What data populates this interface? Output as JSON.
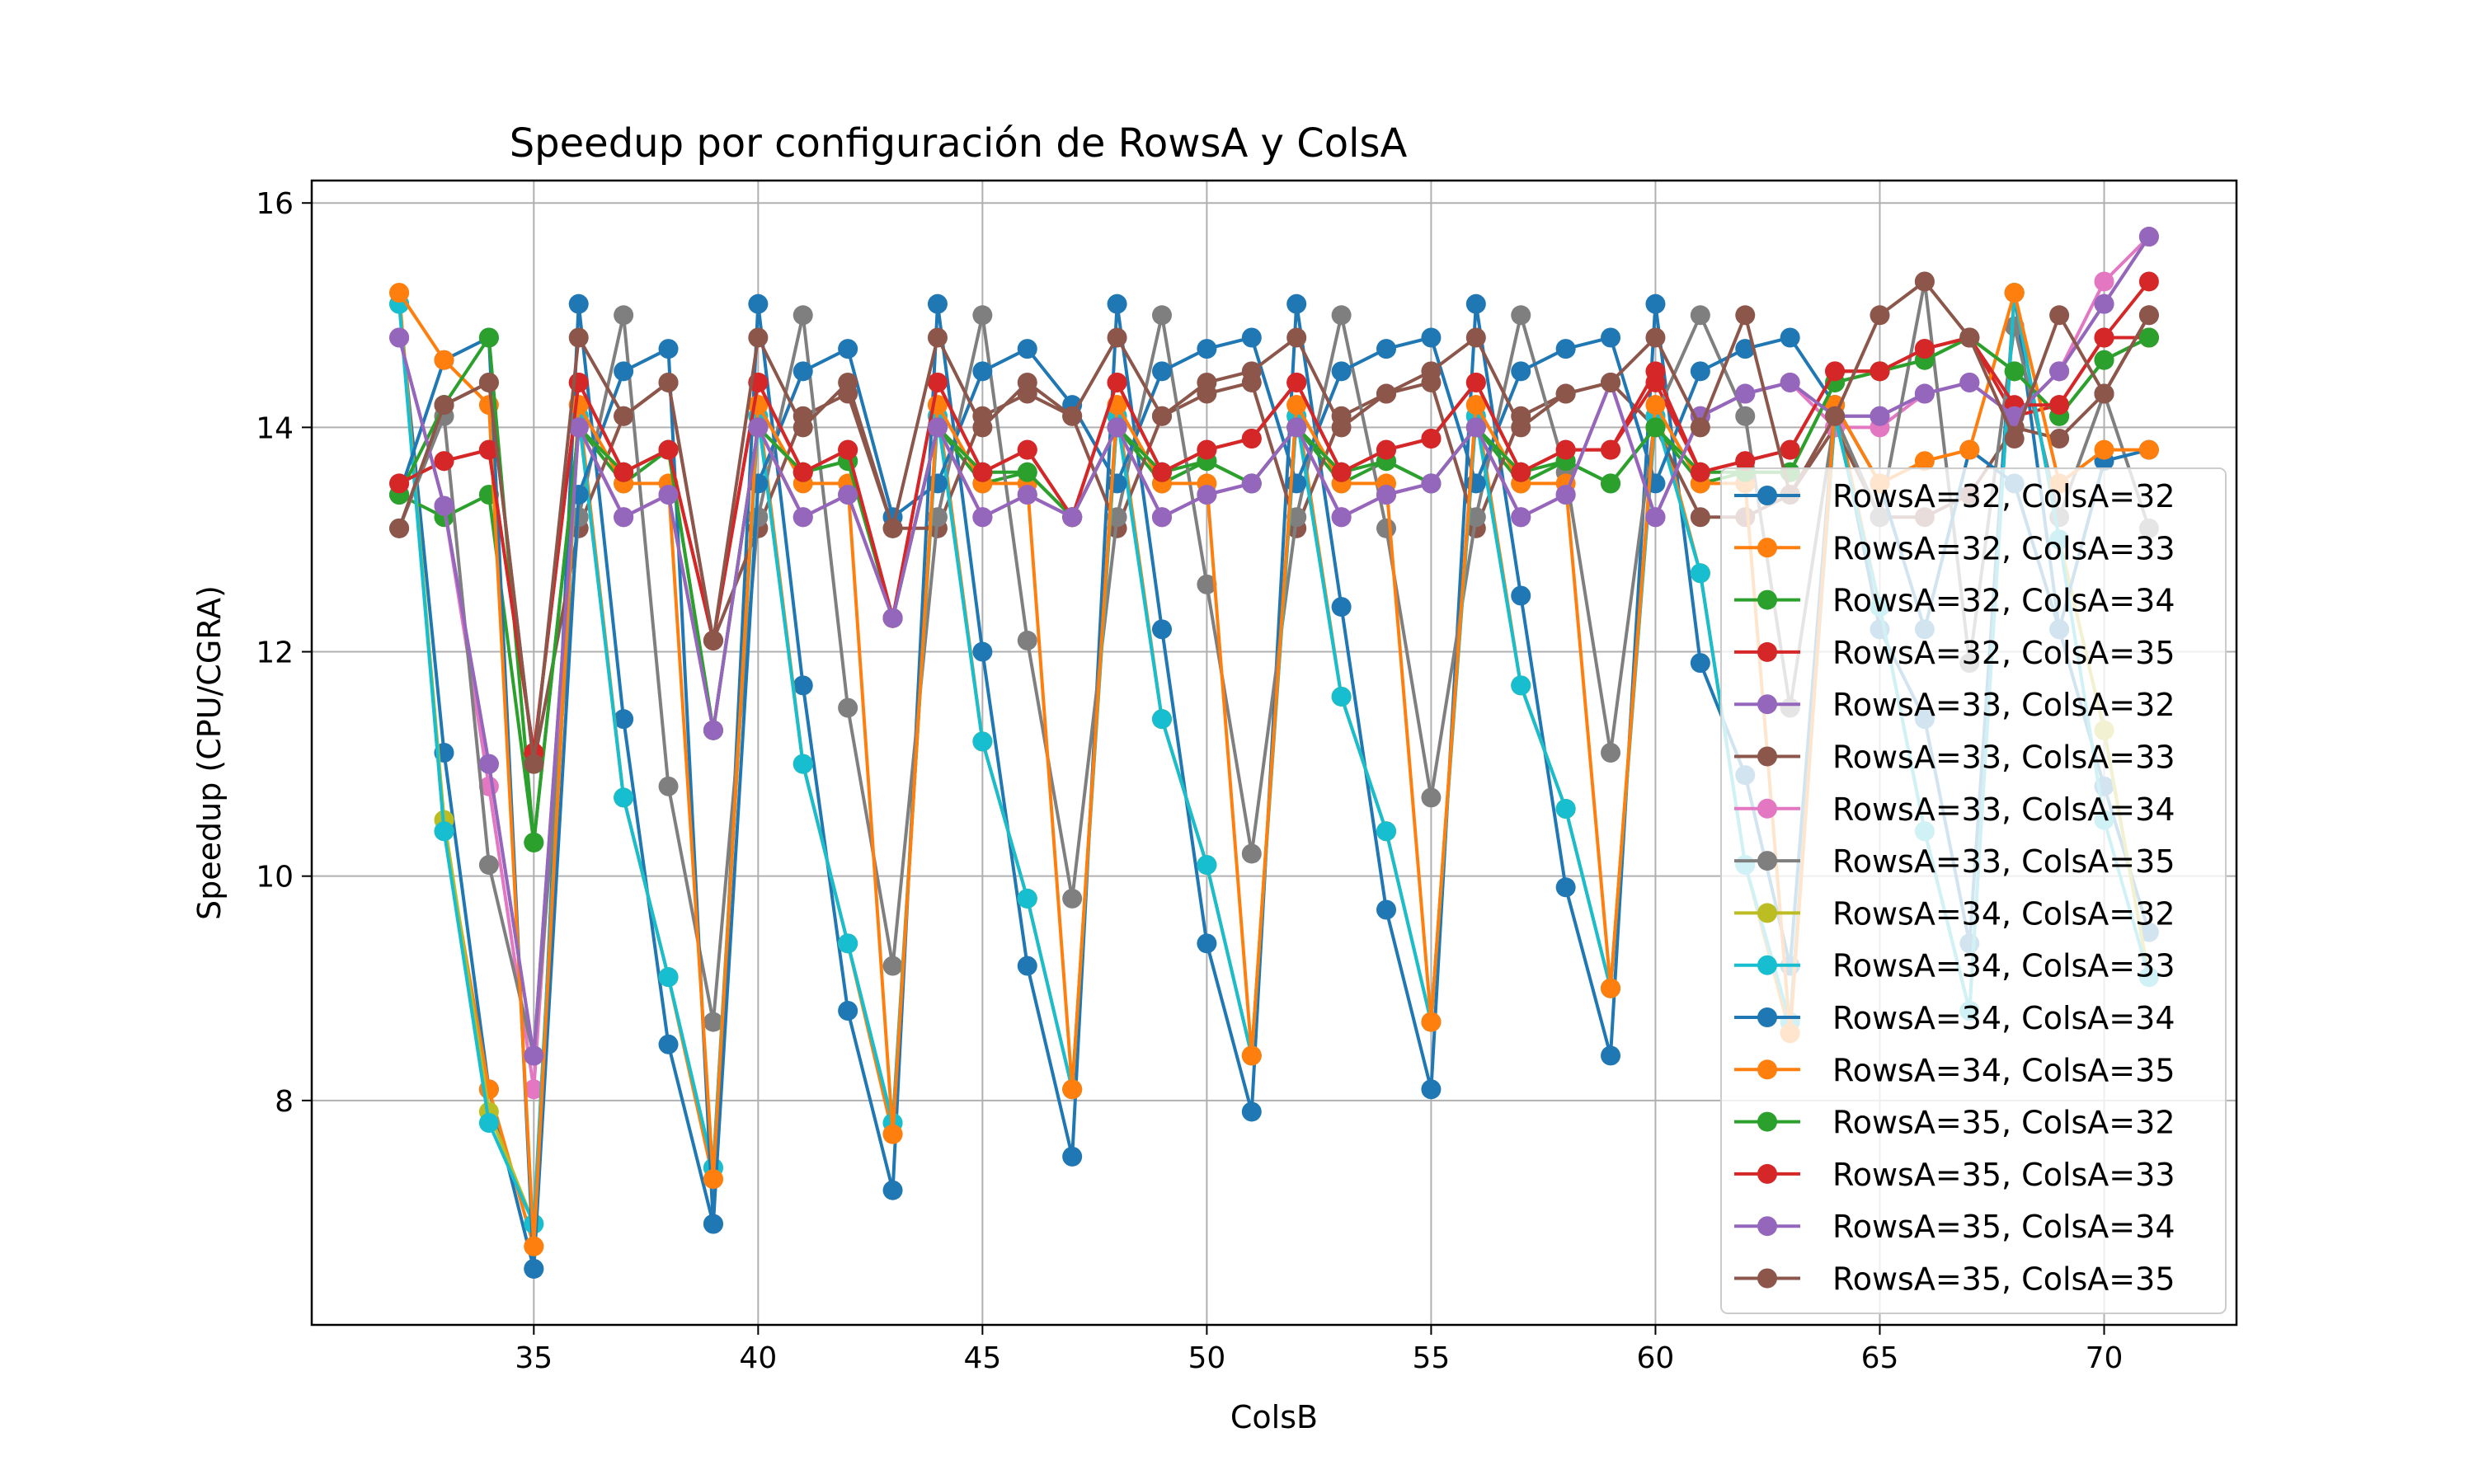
{
  "chart_data": {
    "type": "line",
    "title": "Speedup por configuración de RowsA y ColsA",
    "xlabel": "ColsB",
    "ylabel": "Speedup (CPU/CGRA)",
    "xlim": [
      30.05,
      72.95
    ],
    "ylim": [
      6.0,
      16.2
    ],
    "xticks": [
      35,
      40,
      45,
      50,
      55,
      60,
      65,
      70
    ],
    "yticks": [
      8,
      10,
      12,
      14,
      16
    ],
    "grid": true,
    "legend_position": "right",
    "x": [
      32,
      33,
      34,
      35,
      36,
      37,
      38,
      39,
      40,
      41,
      42,
      43,
      44,
      45,
      46,
      47,
      48,
      49,
      50,
      51,
      52,
      53,
      54,
      55,
      56,
      57,
      58,
      59,
      60,
      61,
      62,
      63,
      64,
      65,
      66,
      67,
      68,
      69,
      70,
      71
    ],
    "series": [
      {
        "name": "RowsA=32, ColsA=32",
        "color": "#1f77b4",
        "values": [
          15.1,
          11.1,
          8.1,
          6.5,
          15.1,
          11.4,
          8.5,
          6.9,
          15.1,
          11.7,
          8.8,
          7.2,
          15.1,
          12.0,
          9.2,
          7.5,
          15.1,
          12.2,
          9.4,
          7.9,
          15.1,
          12.4,
          9.7,
          8.1,
          15.1,
          12.5,
          9.9,
          8.4,
          15.1,
          11.9,
          10.9,
          9.2,
          14.2,
          12.2,
          11.4,
          9.4,
          15.2,
          12.2,
          10.8,
          9.5
        ]
      },
      {
        "name": "RowsA=32, ColsA=33",
        "color": "#ff7f0e",
        "values": [
          15.2,
          10.4,
          8.1,
          6.7,
          14.2,
          10.7,
          9.1,
          7.3,
          14.2,
          11.0,
          9.4,
          7.7,
          14.2,
          11.2,
          9.8,
          8.1,
          14.2,
          11.4,
          10.1,
          8.4,
          14.2,
          11.6,
          10.4,
          8.7,
          14.2,
          11.7,
          10.6,
          9.0,
          14.2,
          12.7,
          10.1,
          8.6,
          14.2,
          12.4,
          10.4,
          8.8,
          15.2,
          13.0,
          11.3,
          9.1
        ]
      },
      {
        "name": "RowsA=32, ColsA=34",
        "color": "#2ca02c",
        "values": [
          13.4,
          13.2,
          13.4,
          10.3,
          14.0,
          13.5,
          13.8,
          11.3,
          14.0,
          13.6,
          13.7,
          12.3,
          14.0,
          13.5,
          13.6,
          13.2,
          14.0,
          13.5,
          13.7,
          13.5,
          14.0,
          13.5,
          13.7,
          13.5,
          14.0,
          13.5,
          13.7,
          13.5,
          14.0,
          13.5,
          13.6,
          13.6,
          14.4,
          14.5,
          14.6,
          14.8,
          14.5,
          14.1,
          14.6,
          14.8
        ]
      },
      {
        "name": "RowsA=32, ColsA=35",
        "color": "#d62728",
        "values": [
          13.5,
          13.7,
          13.8,
          11.1,
          14.4,
          13.6,
          13.8,
          12.1,
          14.4,
          13.6,
          13.8,
          12.3,
          14.4,
          13.6,
          13.8,
          13.2,
          14.4,
          13.6,
          13.8,
          13.9,
          14.4,
          13.6,
          13.8,
          13.9,
          14.4,
          13.6,
          13.8,
          13.8,
          14.4,
          13.6,
          13.7,
          13.8,
          14.5,
          14.5,
          14.7,
          14.8,
          14.1,
          14.2,
          14.8,
          14.8
        ]
      },
      {
        "name": "RowsA=33, ColsA=32",
        "color": "#9467bd",
        "values": [
          14.8,
          13.3,
          11.0,
          8.4,
          14.0,
          13.2,
          13.4,
          11.3,
          14.0,
          13.2,
          13.4,
          12.3,
          14.0,
          13.2,
          13.4,
          13.2,
          14.0,
          13.2,
          13.4,
          13.5,
          14.0,
          13.2,
          13.4,
          13.5,
          14.0,
          13.2,
          13.4,
          14.4,
          13.2,
          14.1,
          14.3,
          14.4,
          14.1,
          14.1,
          14.3,
          14.4,
          14.1,
          14.5,
          15.1,
          15.7
        ]
      },
      {
        "name": "RowsA=33, ColsA=33",
        "color": "#8c564b",
        "values": [
          13.1,
          14.2,
          14.4,
          11.0,
          13.1,
          14.1,
          14.4,
          12.1,
          13.1,
          14.1,
          14.3,
          13.1,
          13.1,
          14.1,
          14.3,
          14.1,
          13.1,
          14.1,
          14.3,
          14.4,
          13.1,
          14.1,
          14.3,
          14.4,
          13.1,
          14.1,
          14.3,
          14.4,
          14.0,
          13.2,
          13.2,
          13.4,
          14.0,
          13.2,
          13.2,
          13.4,
          14.0,
          13.9,
          14.3,
          15.0
        ]
      },
      {
        "name": "RowsA=33, ColsA=34",
        "color": "#e377c2",
        "values": [
          14.8,
          13.3,
          10.8,
          8.1,
          14.0,
          13.2,
          13.4,
          11.3,
          14.0,
          13.2,
          13.4,
          12.3,
          14.0,
          13.2,
          13.4,
          13.2,
          14.0,
          13.2,
          13.4,
          13.5,
          14.0,
          13.2,
          13.4,
          13.5,
          14.0,
          13.2,
          13.4,
          14.4,
          13.2,
          14.1,
          14.3,
          14.4,
          14.0,
          14.0,
          14.3,
          14.4,
          14.1,
          14.5,
          15.3,
          15.7
        ]
      },
      {
        "name": "RowsA=33, ColsA=35",
        "color": "#7f7f7f",
        "values": [
          13.1,
          14.1,
          10.1,
          8.4,
          13.2,
          15.0,
          10.8,
          8.7,
          13.2,
          15.0,
          11.5,
          9.2,
          13.2,
          15.0,
          12.1,
          9.8,
          13.2,
          15.0,
          12.6,
          10.2,
          13.2,
          15.0,
          13.1,
          10.7,
          13.2,
          15.0,
          13.6,
          11.1,
          14.1,
          15.0,
          14.1,
          11.5,
          14.1,
          13.2,
          15.3,
          11.9,
          14.9,
          13.2,
          14.3,
          13.1
        ]
      },
      {
        "name": "RowsA=34, ColsA=32",
        "color": "#bcbd22",
        "values": [
          15.1,
          10.5,
          7.9,
          6.9,
          14.1,
          10.7,
          9.1,
          7.4,
          14.1,
          11.0,
          9.4,
          7.8,
          14.1,
          11.2,
          9.8,
          8.1,
          14.1,
          11.4,
          10.1,
          8.4,
          14.1,
          11.6,
          10.4,
          8.7,
          14.1,
          11.7,
          10.6,
          9.0,
          14.1,
          12.7,
          10.1,
          8.7,
          14.1,
          12.4,
          10.4,
          8.8,
          15.2,
          13.0,
          11.3,
          9.1
        ]
      },
      {
        "name": "RowsA=34, ColsA=33",
        "color": "#17becf",
        "values": [
          15.1,
          10.4,
          7.8,
          6.9,
          14.1,
          10.7,
          9.1,
          7.4,
          14.1,
          11.0,
          9.4,
          7.8,
          14.1,
          11.2,
          9.8,
          8.1,
          14.1,
          11.4,
          10.1,
          8.4,
          14.1,
          11.6,
          10.4,
          8.7,
          14.1,
          11.7,
          10.6,
          9.0,
          14.1,
          12.7,
          10.1,
          8.7,
          14.1,
          12.4,
          10.4,
          8.8,
          15.2,
          13.0,
          10.5,
          9.1
        ]
      },
      {
        "name": "RowsA=34, ColsA=34",
        "color": "#1f77b4",
        "values": [
          13.4,
          14.6,
          14.8,
          6.5,
          13.4,
          14.5,
          14.7,
          6.9,
          13.5,
          14.5,
          14.7,
          13.2,
          13.5,
          14.5,
          14.7,
          14.2,
          13.5,
          14.5,
          14.7,
          14.8,
          13.5,
          14.5,
          14.7,
          14.8,
          13.5,
          14.5,
          14.7,
          14.8,
          13.5,
          14.5,
          14.7,
          14.8,
          14.2,
          13.5,
          12.2,
          13.8,
          13.5,
          12.2,
          13.7,
          13.8
        ]
      },
      {
        "name": "RowsA=34, ColsA=35",
        "color": "#ff7f0e",
        "values": [
          15.2,
          14.6,
          14.2,
          6.7,
          14.2,
          13.5,
          13.5,
          7.3,
          14.2,
          13.5,
          13.5,
          7.7,
          14.2,
          13.5,
          13.5,
          8.1,
          14.2,
          13.5,
          13.5,
          8.4,
          14.2,
          13.5,
          13.5,
          8.7,
          14.2,
          13.5,
          13.5,
          9.0,
          14.2,
          13.5,
          13.5,
          8.6,
          14.2,
          13.5,
          13.7,
          13.8,
          15.2,
          13.5,
          13.8,
          13.8
        ]
      },
      {
        "name": "RowsA=35, ColsA=32",
        "color": "#2ca02c",
        "values": [
          13.4,
          14.2,
          14.8,
          10.3,
          14.0,
          13.6,
          13.8,
          11.3,
          14.0,
          13.6,
          13.7,
          12.3,
          14.0,
          13.6,
          13.6,
          13.2,
          14.0,
          13.6,
          13.7,
          13.5,
          14.0,
          13.6,
          13.7,
          13.5,
          14.0,
          13.6,
          13.7,
          13.5,
          14.0,
          13.6,
          13.6,
          13.6,
          14.4,
          14.5,
          14.6,
          14.8,
          14.5,
          14.1,
          14.6,
          14.8
        ]
      },
      {
        "name": "RowsA=35, ColsA=33",
        "color": "#d62728",
        "values": [
          13.5,
          13.7,
          13.8,
          11.1,
          14.4,
          13.6,
          13.8,
          12.1,
          14.4,
          13.6,
          13.8,
          12.3,
          14.4,
          13.6,
          13.8,
          13.2,
          14.4,
          13.6,
          13.8,
          13.9,
          14.4,
          13.6,
          13.8,
          13.9,
          14.4,
          13.6,
          13.8,
          13.8,
          14.5,
          13.6,
          13.7,
          13.8,
          14.5,
          14.5,
          14.7,
          14.8,
          14.2,
          14.2,
          14.8,
          15.3
        ]
      },
      {
        "name": "RowsA=35, ColsA=34",
        "color": "#9467bd",
        "values": [
          14.8,
          13.3,
          11.0,
          8.4,
          14.0,
          13.2,
          13.4,
          11.3,
          14.0,
          13.2,
          13.4,
          12.3,
          14.0,
          13.2,
          13.4,
          13.2,
          14.0,
          13.2,
          13.4,
          13.5,
          14.0,
          13.2,
          13.4,
          13.5,
          14.0,
          13.2,
          13.4,
          14.4,
          13.2,
          14.1,
          14.3,
          14.4,
          14.1,
          14.1,
          14.3,
          14.4,
          14.1,
          14.5,
          15.1,
          15.7
        ]
      },
      {
        "name": "RowsA=35, ColsA=35",
        "color": "#8c564b",
        "values": [
          13.1,
          14.2,
          14.4,
          11.0,
          14.8,
          14.1,
          14.4,
          12.1,
          14.8,
          14.0,
          14.4,
          13.1,
          14.8,
          14.0,
          14.4,
          14.1,
          14.8,
          14.1,
          14.4,
          14.5,
          14.8,
          14.0,
          14.3,
          14.5,
          14.8,
          14.0,
          14.3,
          14.4,
          14.8,
          14.0,
          15.0,
          13.4,
          14.1,
          15.0,
          15.3,
          14.8,
          13.9,
          15.0,
          14.3,
          15.0
        ]
      }
    ]
  }
}
